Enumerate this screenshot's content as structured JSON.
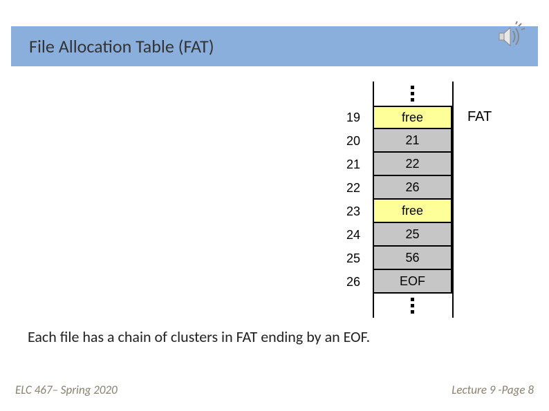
{
  "title": "File Allocation Table (FAT)",
  "fat_label": "FAT",
  "caption": "Each file has a chain of clusters in FAT ending by an EOF.",
  "footer_left": "ELC 467– Spring 2020",
  "footer_right": "Lecture 9 -Page 8",
  "colors": {
    "title_bar": "#8aafdc",
    "free": "#ffff9a",
    "used": "#c6c6c6",
    "border": "#000000"
  },
  "table": {
    "rows": [
      {
        "index": "19",
        "value": "free",
        "kind": "free"
      },
      {
        "index": "20",
        "value": "21",
        "kind": "used"
      },
      {
        "index": "21",
        "value": "22",
        "kind": "used"
      },
      {
        "index": "22",
        "value": "26",
        "kind": "used"
      },
      {
        "index": "23",
        "value": "free",
        "kind": "free"
      },
      {
        "index": "24",
        "value": "25",
        "kind": "used"
      },
      {
        "index": "25",
        "value": "56",
        "kind": "used"
      },
      {
        "index": "26",
        "value": "EOF",
        "kind": "used"
      }
    ]
  }
}
